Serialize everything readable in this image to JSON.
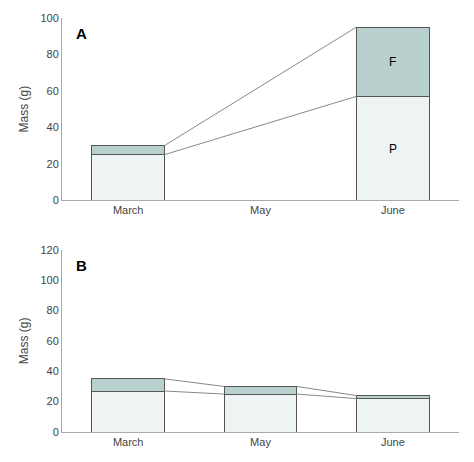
{
  "chart_data": [
    {
      "type": "bar",
      "stacked": true,
      "grid": false,
      "title": "A",
      "ylabel": "Mass (g)",
      "categories": [
        "March",
        "May",
        "June"
      ],
      "series": [
        {
          "color": "#eef4f3",
          "values": [
            25,
            0,
            57
          ]
        },
        {
          "color": "#b8d0ce",
          "values": [
            5,
            0,
            38
          ]
        }
      ],
      "annotations": [
        {
          "text": "F",
          "category": "June",
          "y": 76
        },
        {
          "text": "P",
          "category": "June",
          "y": 28
        }
      ],
      "ylim": [
        0,
        100
      ],
      "yticks": [
        0,
        20,
        40,
        60,
        80,
        100
      ]
    },
    {
      "type": "bar",
      "stacked": true,
      "grid": false,
      "title": "B",
      "ylabel": "Mass (g)",
      "categories": [
        "March",
        "May",
        "June"
      ],
      "series": [
        {
          "color": "#eef4f3",
          "values": [
            27,
            25,
            22
          ]
        },
        {
          "color": "#b8d0ce",
          "values": [
            8,
            5,
            2
          ]
        }
      ],
      "ylim": [
        0,
        120
      ],
      "yticks": [
        0,
        20,
        40,
        60,
        80,
        100,
        120
      ]
    }
  ]
}
